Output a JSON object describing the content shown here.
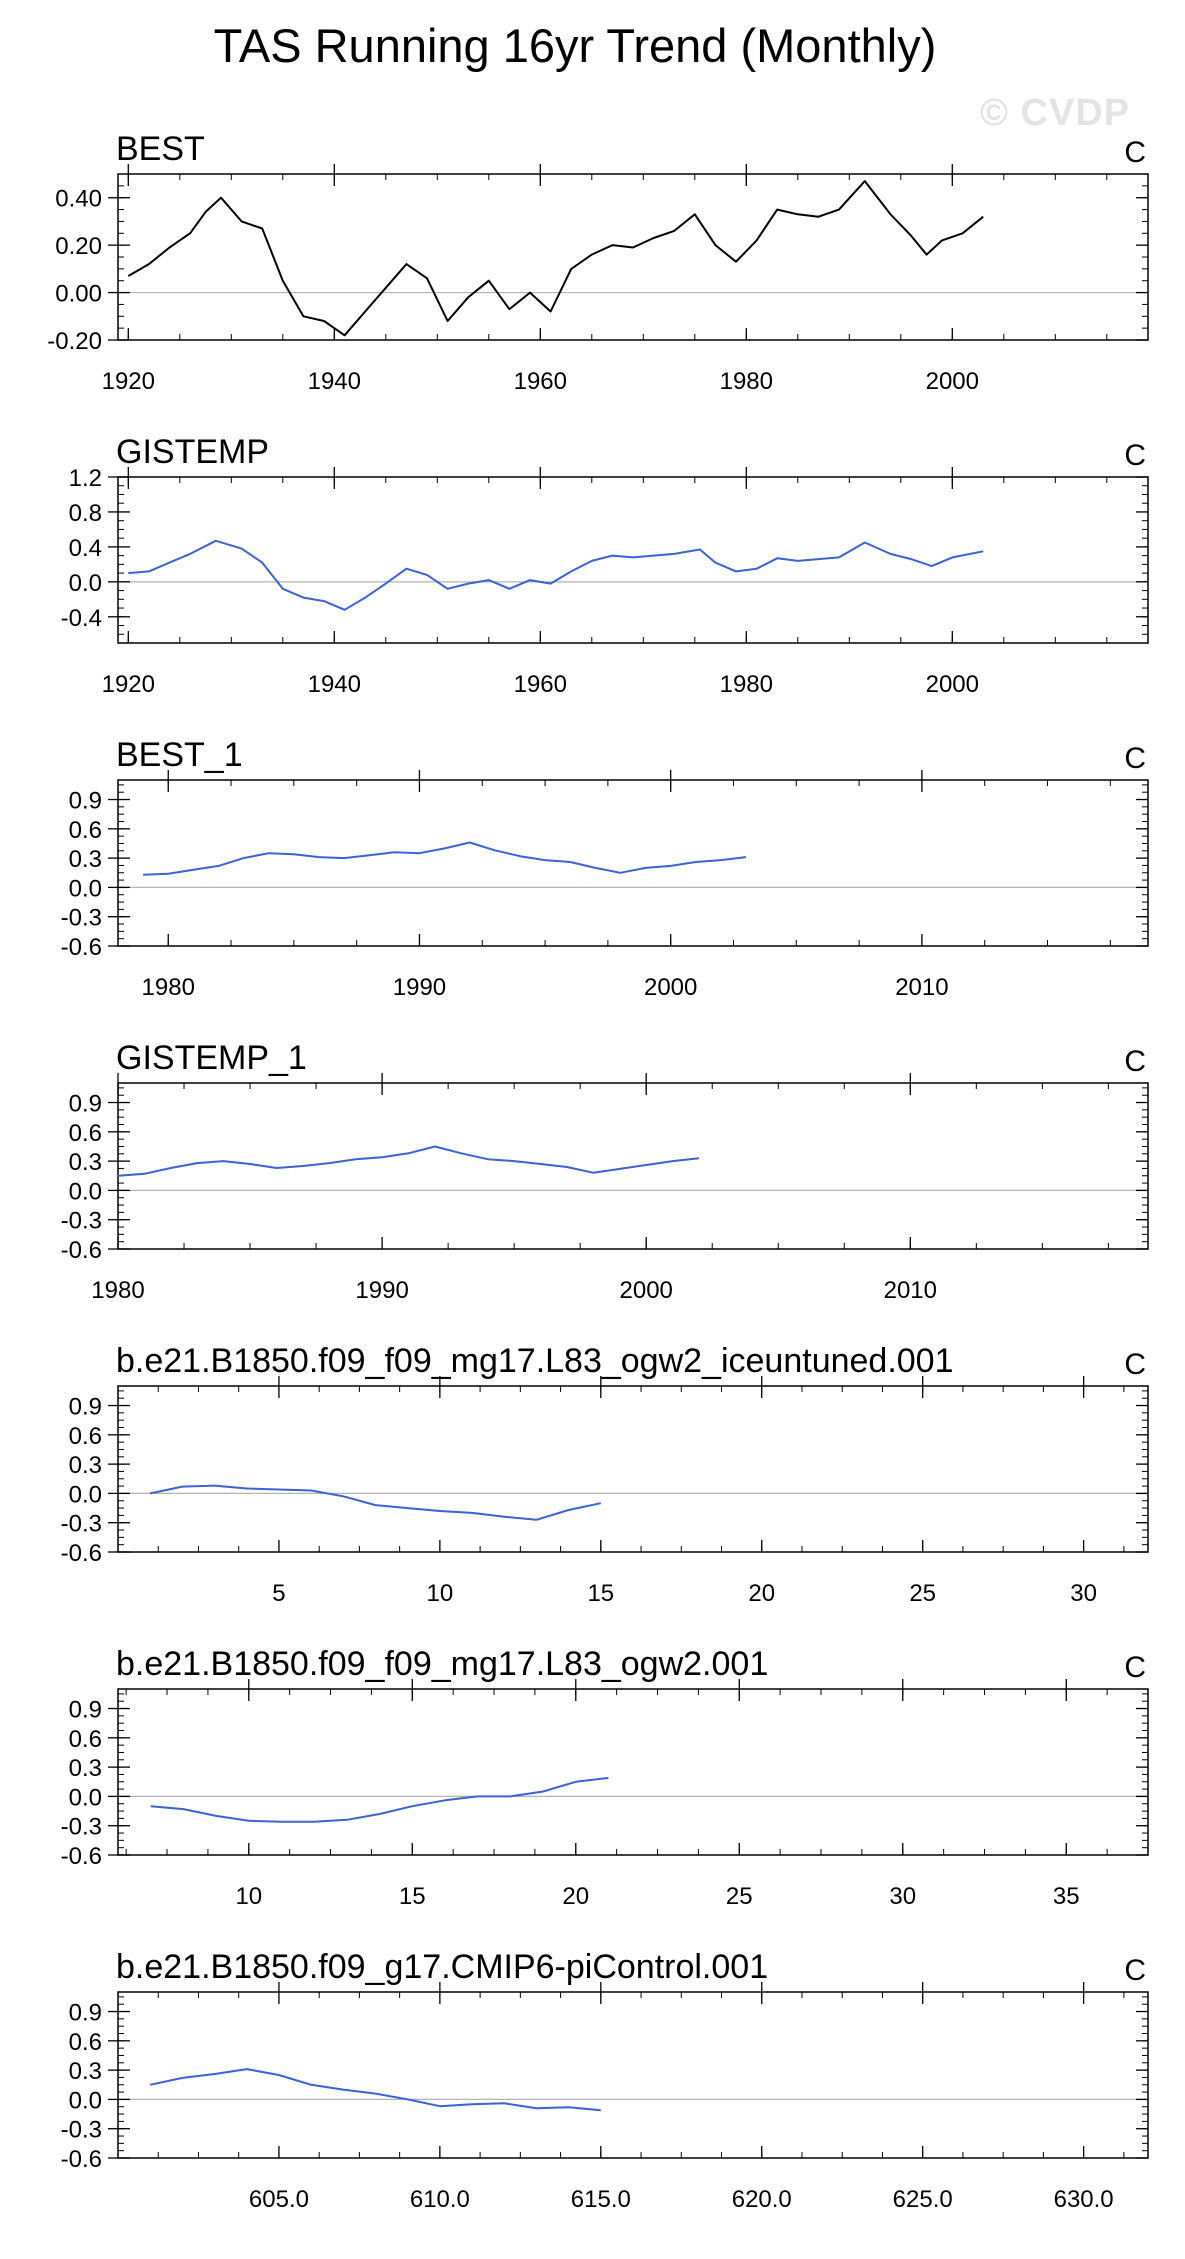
{
  "title": "TAS Running 16yr Trend (Monthly)",
  "watermark": "© CVDP",
  "colors": {
    "observed": "#000000",
    "series": "#3b62d6",
    "axis": "#000000",
    "zero_line": "#b4b4b4"
  },
  "chart_data": [
    {
      "type": "line",
      "title": "BEST",
      "units": "C",
      "xlim": [
        1919,
        2019
      ],
      "ylim": [
        -0.2,
        0.5
      ],
      "x_ticks": [
        1920,
        1940,
        1960,
        1980,
        2000
      ],
      "x_tick_labels": [
        "1920",
        "1940",
        "1960",
        "1980",
        "2000"
      ],
      "y_ticks": [
        -0.2,
        0.0,
        0.2,
        0.4
      ],
      "y_tick_labels": [
        "-0.20",
        "0.00",
        "0.20",
        "0.40"
      ],
      "color": "#000000",
      "x": [
        1920,
        1922,
        1924,
        1926,
        1927.5,
        1929,
        1931,
        1933,
        1935,
        1937,
        1939,
        1941,
        1943,
        1945,
        1947,
        1949,
        1951,
        1953,
        1955,
        1957,
        1959,
        1961,
        1963,
        1965,
        1967,
        1969,
        1971,
        1973,
        1975,
        1977,
        1979,
        1981,
        1983,
        1985,
        1987,
        1989,
        1991.5,
        1994,
        1996,
        1997.5,
        1999,
        2001,
        2003
      ],
      "y": [
        0.07,
        0.12,
        0.19,
        0.25,
        0.34,
        0.4,
        0.3,
        0.27,
        0.05,
        -0.1,
        -0.12,
        -0.18,
        -0.08,
        0.02,
        0.12,
        0.06,
        -0.12,
        -0.02,
        0.05,
        -0.07,
        0.0,
        -0.08,
        0.1,
        0.16,
        0.2,
        0.19,
        0.23,
        0.26,
        0.33,
        0.2,
        0.13,
        0.22,
        0.35,
        0.33,
        0.32,
        0.35,
        0.47,
        0.33,
        0.24,
        0.16,
        0.22,
        0.25,
        0.32
      ]
    },
    {
      "type": "line",
      "title": "GISTEMP",
      "units": "C",
      "xlim": [
        1919,
        2019
      ],
      "ylim": [
        -0.7,
        1.2
      ],
      "x_ticks": [
        1920,
        1940,
        1960,
        1980,
        2000
      ],
      "x_tick_labels": [
        "1920",
        "1940",
        "1960",
        "1980",
        "2000"
      ],
      "y_ticks": [
        -0.4,
        0.0,
        0.4,
        0.8,
        1.2
      ],
      "y_tick_labels": [
        "-0.4",
        "0.0",
        "0.4",
        "0.8",
        "1.2"
      ],
      "color": "#3b62d6",
      "x": [
        1920,
        1922,
        1924,
        1926,
        1928.5,
        1931,
        1933,
        1935,
        1937,
        1939,
        1941,
        1943,
        1945,
        1947,
        1949,
        1951,
        1953,
        1955,
        1957,
        1959,
        1961,
        1963,
        1965,
        1967,
        1969,
        1971,
        1973,
        1975.5,
        1977,
        1979,
        1981,
        1983,
        1985,
        1987,
        1989,
        1991.5,
        1994,
        1996,
        1998,
        2000,
        2003
      ],
      "y": [
        0.1,
        0.12,
        0.22,
        0.32,
        0.47,
        0.38,
        0.22,
        -0.08,
        -0.18,
        -0.22,
        -0.32,
        -0.18,
        -0.02,
        0.15,
        0.08,
        -0.08,
        -0.02,
        0.02,
        -0.08,
        0.02,
        -0.02,
        0.12,
        0.24,
        0.3,
        0.28,
        0.3,
        0.32,
        0.37,
        0.22,
        0.12,
        0.15,
        0.27,
        0.24,
        0.26,
        0.28,
        0.45,
        0.32,
        0.26,
        0.18,
        0.28,
        0.35
      ]
    },
    {
      "type": "line",
      "title": "BEST_1",
      "units": "C",
      "xlim": [
        1978,
        2019
      ],
      "ylim": [
        -0.6,
        1.1
      ],
      "x_ticks": [
        1980,
        1990,
        2000,
        2010
      ],
      "x_tick_labels": [
        "1980",
        "1990",
        "2000",
        "2010"
      ],
      "y_ticks": [
        -0.6,
        -0.3,
        0.0,
        0.3,
        0.6,
        0.9
      ],
      "y_tick_labels": [
        "-0.6",
        "-0.3",
        "0.0",
        "0.3",
        "0.6",
        "0.9"
      ],
      "color": "#3b62d6",
      "x": [
        1979,
        1980,
        1981,
        1982,
        1983,
        1984,
        1985,
        1986,
        1987,
        1988,
        1989,
        1990,
        1991,
        1992,
        1993,
        1994,
        1995,
        1996,
        1997,
        1998,
        1999,
        2000,
        2001,
        2002,
        2003
      ],
      "y": [
        0.13,
        0.14,
        0.18,
        0.22,
        0.3,
        0.35,
        0.34,
        0.31,
        0.3,
        0.33,
        0.36,
        0.35,
        0.4,
        0.46,
        0.38,
        0.32,
        0.28,
        0.26,
        0.2,
        0.15,
        0.2,
        0.22,
        0.26,
        0.28,
        0.31
      ]
    },
    {
      "type": "line",
      "title": "GISTEMP_1",
      "units": "C",
      "xlim": [
        1980,
        2019
      ],
      "ylim": [
        -0.6,
        1.1
      ],
      "x_ticks": [
        1980,
        1990,
        2000,
        2010
      ],
      "x_tick_labels": [
        "1980",
        "1990",
        "2000",
        "2010"
      ],
      "y_ticks": [
        -0.6,
        -0.3,
        0.0,
        0.3,
        0.6,
        0.9
      ],
      "y_tick_labels": [
        "-0.6",
        "-0.3",
        "0.0",
        "0.3",
        "0.6",
        "0.9"
      ],
      "color": "#3b62d6",
      "x": [
        1980,
        1981,
        1982,
        1983,
        1984,
        1985,
        1986,
        1987,
        1988,
        1989,
        1990,
        1991,
        1992,
        1993,
        1994,
        1995,
        1996,
        1997,
        1998,
        1999,
        2000,
        2001,
        2002
      ],
      "y": [
        0.15,
        0.17,
        0.23,
        0.28,
        0.3,
        0.27,
        0.23,
        0.25,
        0.28,
        0.32,
        0.34,
        0.38,
        0.45,
        0.38,
        0.32,
        0.3,
        0.27,
        0.24,
        0.18,
        0.22,
        0.26,
        0.3,
        0.33
      ]
    },
    {
      "type": "line",
      "title": "b.e21.B1850.f09_f09_mg17.L83_ogw2_iceuntuned.001",
      "units": "C",
      "xlim": [
        0,
        32
      ],
      "ylim": [
        -0.6,
        1.1
      ],
      "x_ticks": [
        5,
        10,
        15,
        20,
        25,
        30
      ],
      "x_tick_labels": [
        "5",
        "10",
        "15",
        "20",
        "25",
        "30"
      ],
      "y_ticks": [
        -0.6,
        -0.3,
        0.0,
        0.3,
        0.6,
        0.9
      ],
      "y_tick_labels": [
        "-0.6",
        "-0.3",
        "0.0",
        "0.3",
        "0.6",
        "0.9"
      ],
      "color": "#3b62d6",
      "x": [
        1,
        2,
        3,
        4,
        5,
        6,
        7,
        8,
        9,
        10,
        11,
        12,
        13,
        14,
        15
      ],
      "y": [
        0.0,
        0.07,
        0.08,
        0.05,
        0.04,
        0.03,
        -0.03,
        -0.12,
        -0.15,
        -0.18,
        -0.2,
        -0.24,
        -0.27,
        -0.17,
        -0.1
      ]
    },
    {
      "type": "line",
      "title": "b.e21.B1850.f09_f09_mg17.L83_ogw2.001",
      "units": "C",
      "xlim": [
        6,
        37.5
      ],
      "ylim": [
        -0.6,
        1.1
      ],
      "x_ticks": [
        10,
        15,
        20,
        25,
        30,
        35
      ],
      "x_tick_labels": [
        "10",
        "15",
        "20",
        "25",
        "30",
        "35"
      ],
      "y_ticks": [
        -0.6,
        -0.3,
        0.0,
        0.3,
        0.6,
        0.9
      ],
      "y_tick_labels": [
        "-0.6",
        "-0.3",
        "0.0",
        "0.3",
        "0.6",
        "0.9"
      ],
      "color": "#3b62d6",
      "x": [
        7,
        8,
        9,
        10,
        11,
        12,
        13,
        14,
        15,
        16,
        17,
        18,
        19,
        20,
        21
      ],
      "y": [
        -0.1,
        -0.13,
        -0.2,
        -0.25,
        -0.26,
        -0.26,
        -0.24,
        -0.18,
        -0.1,
        -0.04,
        0.0,
        0.0,
        0.05,
        0.15,
        0.19
      ]
    },
    {
      "type": "line",
      "title": "b.e21.B1850.f09_g17.CMIP6-piControl.001",
      "units": "C",
      "xlim": [
        600,
        632
      ],
      "ylim": [
        -0.6,
        1.1
      ],
      "x_ticks": [
        605,
        610,
        615,
        620,
        625,
        630
      ],
      "x_tick_labels": [
        "605.0",
        "610.0",
        "615.0",
        "620.0",
        "625.0",
        "630.0"
      ],
      "y_ticks": [
        -0.6,
        -0.3,
        0.0,
        0.3,
        0.6,
        0.9
      ],
      "y_tick_labels": [
        "-0.6",
        "-0.3",
        "0.0",
        "0.3",
        "0.6",
        "0.9"
      ],
      "color": "#3b62d6",
      "x": [
        601,
        602,
        603,
        604,
        605,
        606,
        607,
        608,
        609,
        610,
        611,
        612,
        613,
        614,
        615
      ],
      "y": [
        0.15,
        0.22,
        0.26,
        0.31,
        0.25,
        0.15,
        0.1,
        0.06,
        0.0,
        -0.07,
        -0.05,
        -0.04,
        -0.09,
        -0.08,
        -0.11
      ]
    }
  ]
}
